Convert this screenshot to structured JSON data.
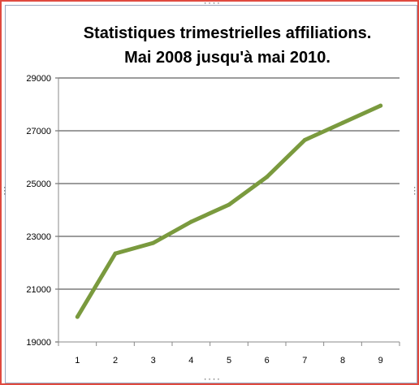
{
  "chart_data": {
    "type": "line",
    "title": "Statistiques trimestrielles affiliations.",
    "subtitle": "Mai 2008 jusqu'à mai 2010.",
    "xlabel": "",
    "ylabel": "",
    "categories": [
      "1",
      "2",
      "3",
      "4",
      "5",
      "6",
      "7",
      "8",
      "9"
    ],
    "series": [
      {
        "values": [
          19950,
          22350,
          22750,
          23550,
          24200,
          25250,
          26650,
          27300,
          27950
        ]
      }
    ],
    "ylim": [
      19000,
      29000
    ],
    "yticks": [
      "19000",
      "21000",
      "23000",
      "25000",
      "27000",
      "29000"
    ],
    "grid": true,
    "legend": "none",
    "line_color": "#7a9a3e"
  }
}
